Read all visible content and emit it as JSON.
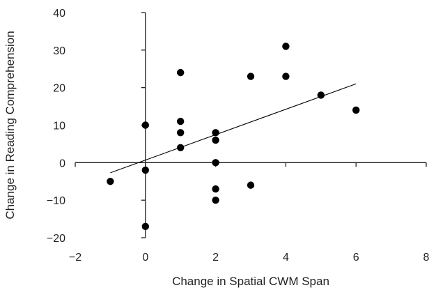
{
  "chart_data": {
    "type": "scatter",
    "title": "",
    "xlabel": "Change in Spatial CWM Span",
    "ylabel": "Change in Reading Comprehension",
    "xlim": [
      -2,
      8
    ],
    "ylim": [
      -20,
      40
    ],
    "xticks": [
      -2,
      0,
      2,
      4,
      6,
      8
    ],
    "yticks": [
      -20,
      -10,
      0,
      10,
      20,
      30,
      40
    ],
    "xtick_labels": [
      "−2",
      "0",
      "2",
      "4",
      "6",
      "8"
    ],
    "ytick_labels": [
      "−20",
      "−10",
      "0",
      "10",
      "20",
      "30",
      "40"
    ],
    "grid": false,
    "legend": "none",
    "series": [
      {
        "points": [
          {
            "x": -1,
            "y": -5
          },
          {
            "x": 0,
            "y": 10
          },
          {
            "x": 0,
            "y": -2
          },
          {
            "x": 0,
            "y": -17
          },
          {
            "x": 1,
            "y": 24
          },
          {
            "x": 1,
            "y": 11
          },
          {
            "x": 1,
            "y": 8
          },
          {
            "x": 1,
            "y": 4
          },
          {
            "x": 2,
            "y": 8
          },
          {
            "x": 2,
            "y": 6
          },
          {
            "x": 2,
            "y": 0
          },
          {
            "x": 2,
            "y": -7
          },
          {
            "x": 2,
            "y": -10
          },
          {
            "x": 3,
            "y": 23
          },
          {
            "x": 3,
            "y": -6
          },
          {
            "x": 4,
            "y": 31
          },
          {
            "x": 4,
            "y": 23
          },
          {
            "x": 5,
            "y": 18
          },
          {
            "x": 6,
            "y": 14
          }
        ]
      }
    ],
    "trendline": {
      "x": [
        -1,
        6
      ],
      "y": [
        -2.7,
        21.0
      ]
    },
    "colors": {
      "marker": "#000000",
      "axis": "#231f20",
      "trendline": "#000000"
    }
  }
}
